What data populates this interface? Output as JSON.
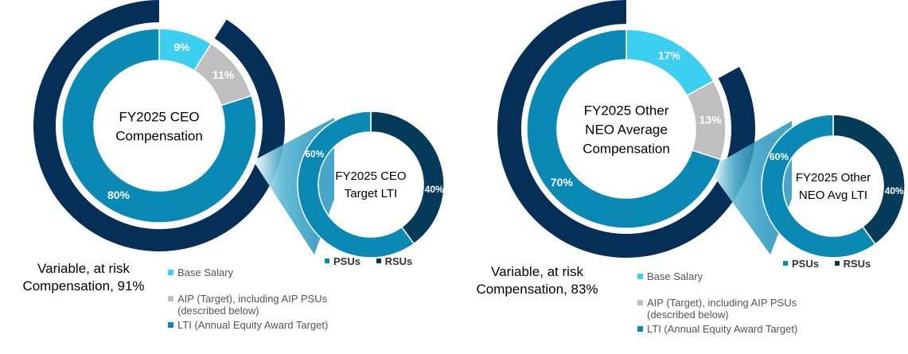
{
  "colors": {
    "base_salary": "#3dcfef",
    "aip": "#bfbfbf",
    "lti": "#0a89b5",
    "variable_ring": "#062f57",
    "psus": "#0a89b5",
    "rsus": "#053b58"
  },
  "chart_data": [
    {
      "type": "pie",
      "title": "FY2025 CEO Compensation",
      "categories": [
        "Base Salary",
        "AIP (Target), including AIP PSUs (described below)",
        "LTI (Annual Equity Award Target)"
      ],
      "values": [
        9,
        11,
        80
      ],
      "value_labels": [
        "9%",
        "11%",
        "80%"
      ],
      "variable_at_risk": 91,
      "variable_text": [
        "Variable, at risk",
        "Compensation, 91%"
      ],
      "legend": [
        "Base Salary",
        "AIP (Target), including AIP PSUs",
        "(described below)",
        "LTI (Annual Equity Award Target)"
      ],
      "lti_breakdown": {
        "title_lines": [
          "FY2025 CEO",
          "Target LTI"
        ],
        "categories": [
          "PSUs",
          "RSUs"
        ],
        "values": [
          60,
          40
        ],
        "value_labels": [
          "60%",
          "40%"
        ]
      }
    },
    {
      "type": "pie",
      "title": "FY2025 Other NEO Average Compensation",
      "categories": [
        "Base Salary",
        "AIP (Target), including AIP PSUs (described below)",
        "LTI (Annual Equity Award Target)"
      ],
      "values": [
        17,
        13,
        70
      ],
      "value_labels": [
        "17%",
        "13%",
        "70%"
      ],
      "variable_at_risk": 83,
      "variable_text": [
        "Variable, at risk",
        "Compensation, 83%"
      ],
      "legend": [
        "Base Salary",
        "AIP (Target), including AIP PSUs",
        "(described below)",
        "LTI (Annual Equity Award Target)"
      ],
      "lti_breakdown": {
        "title_lines": [
          "FY2025 Other",
          "NEO Avg LTI"
        ],
        "categories": [
          "PSUs",
          "RSUs"
        ],
        "values": [
          60,
          40
        ],
        "value_labels": [
          "60%",
          "40%"
        ]
      }
    }
  ],
  "main_titles": [
    [
      "FY2025 CEO",
      "Compensation"
    ],
    [
      "FY2025 Other",
      "NEO Average",
      "Compensation"
    ]
  ]
}
